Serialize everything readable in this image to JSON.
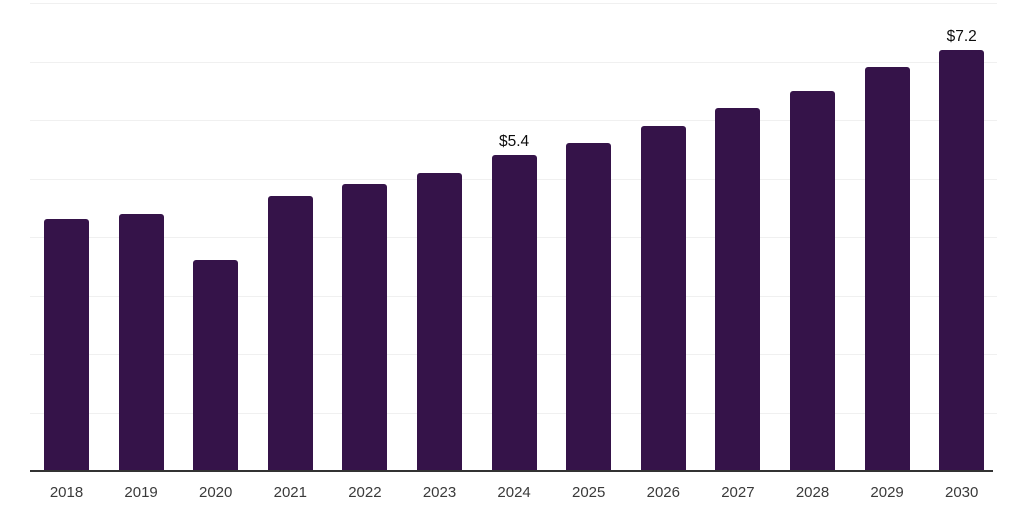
{
  "chart_data": {
    "type": "bar",
    "title": "",
    "xlabel": "",
    "ylabel": "",
    "categories": [
      "2018",
      "2019",
      "2020",
      "2021",
      "2022",
      "2023",
      "2024",
      "2025",
      "2026",
      "2027",
      "2028",
      "2029",
      "2030"
    ],
    "values": [
      4.3,
      4.4,
      3.6,
      4.7,
      4.9,
      5.1,
      5.4,
      5.6,
      5.9,
      6.2,
      6.5,
      6.9,
      7.2
    ],
    "data_labels": [
      {
        "category": "2024",
        "text": "$5.4"
      },
      {
        "category": "2030",
        "text": "$7.2"
      }
    ],
    "ylim": [
      0,
      8
    ],
    "gridline_interval": 1,
    "grid": "horizontal-only",
    "legend": "none",
    "y_axis_labels_visible": false,
    "colors": {
      "bar": "#351349",
      "axis_line": "#333333",
      "gridline": "#f0f0f0",
      "tick_label": "#3a3a3a",
      "data_label": "#0d0d0d",
      "background": "#ffffff"
    }
  }
}
